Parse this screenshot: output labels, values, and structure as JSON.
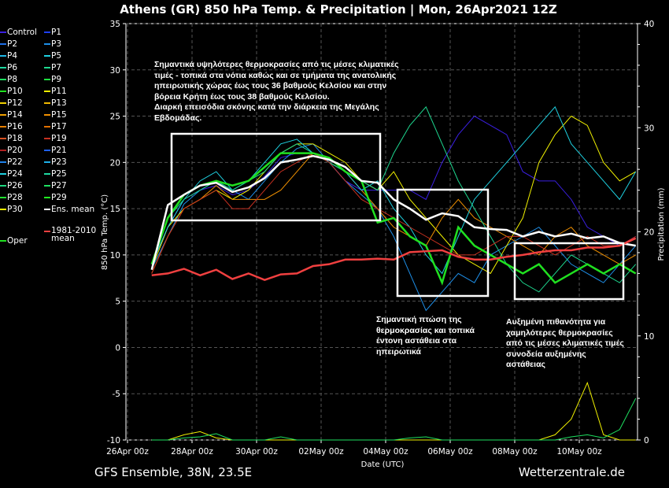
{
  "title": "Athens  (GR)  850 hPa Temp. & Precipitation | Mon, 26Apr2021 12Z",
  "footer_left": "GFS Ensemble, 38N, 23.5E",
  "footer_right": "Wetterzentrale.de",
  "annotations": [
    "Σημαντικά υψηλότερες θερμοκρασίες από τις μέσες κλιματικές\nτιμές - τοπικά στα νότια καθώς και σε τμήματα της ανατολικής\nηπειρωτικής χώρας έως τους 36 βαθμούς Κελσίου και στην\nβόρεια Κρήτη έως τους 38 βαθμούς Κελσίου.\nΔιαρκή επεισόδια σκόνης κατά την διάρκεια της Μεγάλης\nΕβδομάδας.",
    "Σημαντική πτώση της\nθερμοκρασίας και τοπικά\nέντονη αστάθεια στα\nηπειρωτικά",
    "Αυξημένη πιθανότητα για\nχαμηλότερες θερμοκρασίες\nαπό τις μέσες κλιματικές τιμές\nσυνοδεία αυξημένης\nαστάθειας"
  ],
  "legend": [
    {
      "label": "Control",
      "color": "#3a1fe0"
    },
    {
      "label": "P1",
      "color": "#1d3ff0"
    },
    {
      "label": "P2",
      "color": "#1e6fe8"
    },
    {
      "label": "P3",
      "color": "#1e8fe8"
    },
    {
      "label": "P4",
      "color": "#1eb8e8"
    },
    {
      "label": "P5",
      "color": "#1ed0e0"
    },
    {
      "label": "P6",
      "color": "#1ed8a0"
    },
    {
      "label": "P7",
      "color": "#1ed890"
    },
    {
      "label": "P8",
      "color": "#1ee060"
    },
    {
      "label": "P9",
      "color": "#1ee040"
    },
    {
      "label": "P10",
      "color": "#20e020"
    },
    {
      "label": "P11",
      "color": "#f0f000"
    },
    {
      "label": "P12",
      "color": "#f0d000"
    },
    {
      "label": "P13",
      "color": "#f0b800"
    },
    {
      "label": "P14",
      "color": "#f0a000"
    },
    {
      "label": "P15",
      "color": "#f09000"
    },
    {
      "label": "P16",
      "color": "#e88000"
    },
    {
      "label": "P17",
      "color": "#e07000"
    },
    {
      "label": "P18",
      "color": "#d85020"
    },
    {
      "label": "P19",
      "color": "#c83020"
    },
    {
      "label": "P20",
      "color": "#b02020"
    },
    {
      "label": "P21",
      "color": "#1e60f0"
    },
    {
      "label": "P22",
      "color": "#1e80e8"
    },
    {
      "label": "P23",
      "color": "#1eb0e8"
    },
    {
      "label": "P24",
      "color": "#1ed0e0"
    },
    {
      "label": "P25",
      "color": "#1ed8a0"
    },
    {
      "label": "P26",
      "color": "#1ed880"
    },
    {
      "label": "P27",
      "color": "#1ee060"
    },
    {
      "label": "P28",
      "color": "#20e030"
    },
    {
      "label": "P29",
      "color": "#20f020"
    },
    {
      "label": "P30",
      "color": "#f0f000"
    },
    {
      "label": "Ens. mean",
      "color": "#ffffff"
    },
    {
      "label": "Oper",
      "color": "#20e020"
    },
    {
      "label": "1981-2010\nmean",
      "color": "#f04040"
    }
  ],
  "chart_data": {
    "type": "line",
    "title": "Athens  (GR)  850 hPa Temp. & Precipitation | Mon, 26Apr2021 12Z",
    "xlabel": "Date (UTC)",
    "ylabel": "850 hPa Temp. (°C)",
    "y2label": "Precipitation (mm)",
    "ylim": [
      -10,
      35
    ],
    "y2lim": [
      0,
      40
    ],
    "yticks": [
      -10,
      -5,
      0,
      5,
      10,
      15,
      20,
      25,
      30,
      35
    ],
    "y2ticks": [
      0,
      10,
      20,
      30,
      40
    ],
    "xticks": [
      "26Apr 00z",
      "28Apr 00z",
      "30Apr 00z",
      "02May 00z",
      "04May 00z",
      "06May 00z",
      "08May 00z",
      "10May 00z"
    ],
    "x_start_hours": 18,
    "x_step_hours": 12,
    "series": [
      {
        "name": "Control",
        "color": "#3a1fe0",
        "values": [
          9,
          13,
          16,
          17,
          17.5,
          16.5,
          17,
          18.5,
          20.5,
          21,
          21,
          20,
          18,
          17,
          17,
          17,
          17,
          16,
          20,
          23,
          25,
          24,
          23,
          19,
          18,
          18,
          16,
          13,
          12,
          11,
          12
        ]
      },
      {
        "name": "P3",
        "color": "#1e8fe8",
        "values": [
          8.5,
          12,
          15.5,
          17,
          18,
          17,
          16,
          18,
          20,
          21.5,
          22,
          20,
          18,
          16.5,
          15,
          12,
          8,
          4,
          6,
          8,
          7,
          10,
          11,
          12,
          13,
          11,
          9,
          8,
          7,
          9,
          11
        ]
      },
      {
        "name": "P11",
        "color": "#f0f000",
        "values": [
          8.5,
          13,
          15,
          16,
          17,
          16,
          17,
          19,
          21,
          22,
          22,
          21,
          20,
          18,
          17,
          19,
          16,
          14,
          12,
          10,
          9,
          8,
          11,
          14,
          20,
          23,
          25,
          24,
          20,
          18,
          19
        ]
      },
      {
        "name": "P15",
        "color": "#f09000",
        "values": [
          8,
          12,
          15,
          16,
          17.5,
          16,
          16,
          16,
          17,
          19,
          21,
          20,
          19,
          17,
          15,
          13,
          12,
          11,
          14,
          16,
          14,
          13,
          12,
          11,
          10,
          12,
          13,
          11,
          10,
          9,
          10
        ]
      },
      {
        "name": "P24",
        "color": "#1ed0e0",
        "values": [
          9,
          13,
          16,
          18,
          19,
          17,
          18,
          20,
          22,
          22.5,
          21,
          20,
          19,
          17,
          18,
          15,
          13,
          10,
          8,
          12,
          16,
          18,
          20,
          22,
          24,
          26,
          22,
          20,
          18,
          16,
          19
        ]
      },
      {
        "name": "P7",
        "color": "#1ed890",
        "values": [
          9,
          14,
          16,
          17,
          18,
          17,
          18,
          19,
          21,
          22,
          21,
          20,
          19,
          18,
          17,
          21,
          24,
          26,
          22,
          18,
          15,
          12,
          9,
          7,
          6,
          8,
          10,
          9,
          8,
          7,
          9
        ]
      },
      {
        "name": "P19",
        "color": "#c83020",
        "values": [
          8,
          12,
          15,
          16,
          17,
          15,
          15,
          17,
          19,
          20,
          21,
          20,
          18,
          16,
          15,
          14,
          13,
          12,
          11,
          10,
          10,
          11,
          12,
          12,
          11,
          10,
          11,
          12,
          11,
          11,
          12
        ]
      },
      {
        "name": "Oper",
        "color": "#20e020",
        "values": [
          9,
          14,
          16.5,
          17.5,
          18,
          17.5,
          18,
          19.5,
          21,
          21,
          21,
          20.5,
          19,
          18,
          13.5,
          14,
          12,
          11,
          7,
          13,
          11,
          10,
          9,
          8,
          9,
          7,
          8,
          9,
          8,
          9,
          8
        ]
      },
      {
        "name": "Ens. mean",
        "color": "#ffffff",
        "values": [
          8.4,
          15.4,
          16.5,
          17.5,
          17.8,
          16.8,
          17.3,
          18.3,
          20,
          20.3,
          20.7,
          20.3,
          19.5,
          18,
          17.8,
          16,
          15,
          13.8,
          14.5,
          14.2,
          13,
          12.8,
          12.7,
          12,
          12.5,
          12,
          12.3,
          11.8,
          12,
          11.3,
          11
        ]
      },
      {
        "name": "1981-2010 mean",
        "color": "#f04040",
        "values": [
          7.8,
          8,
          8.5,
          7.8,
          8.4,
          7.4,
          8,
          7.3,
          7.9,
          8,
          8.8,
          9,
          9.5,
          9.5,
          9.6,
          9.5,
          10.3,
          10.4,
          10.5,
          9.8,
          9.5,
          9.5,
          9.8,
          10,
          10.3,
          10.5,
          10.5,
          10.8,
          10.8,
          11,
          11.8
        ]
      }
    ],
    "precip_series": [
      {
        "name": "P11",
        "color": "#f0f000",
        "values": [
          0,
          0,
          0.5,
          0.8,
          0.2,
          0,
          0,
          0,
          0,
          0,
          0,
          0,
          0,
          0,
          0,
          0,
          0,
          0,
          0,
          0,
          0,
          0,
          0,
          0,
          0,
          0.5,
          2,
          5.5,
          0.5,
          0,
          0
        ]
      },
      {
        "name": "P8",
        "color": "#1ee060",
        "values": [
          0,
          0,
          0.2,
          0.3,
          0.6,
          0,
          0,
          0,
          0.3,
          0,
          0,
          0,
          0,
          0,
          0,
          0,
          0.2,
          0.3,
          0,
          0,
          0,
          0,
          0,
          0,
          0,
          0,
          0.3,
          0.5,
          0.2,
          1,
          4
        ]
      }
    ]
  }
}
